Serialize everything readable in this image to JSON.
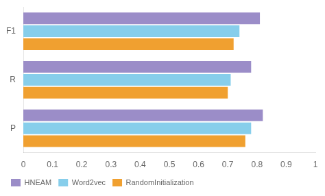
{
  "chart_data": {
    "type": "bar",
    "orientation": "horizontal",
    "categories": [
      "F1",
      "R",
      "P"
    ],
    "series": [
      {
        "name": "HNEAM",
        "color": "#9B8DC8",
        "values": [
          0.81,
          0.78,
          0.82
        ]
      },
      {
        "name": "Word2vec",
        "color": "#87CEEB",
        "values": [
          0.74,
          0.71,
          0.78
        ]
      },
      {
        "name": "RandomInitialization",
        "color": "#F0A030",
        "values": [
          0.72,
          0.7,
          0.76
        ]
      }
    ],
    "xlim": [
      0,
      1
    ],
    "xticks": [
      0,
      0.1,
      0.2,
      0.3,
      0.4,
      0.5,
      0.6,
      0.7,
      0.8,
      0.9,
      1
    ],
    "grid": false,
    "legend": "lower left"
  }
}
